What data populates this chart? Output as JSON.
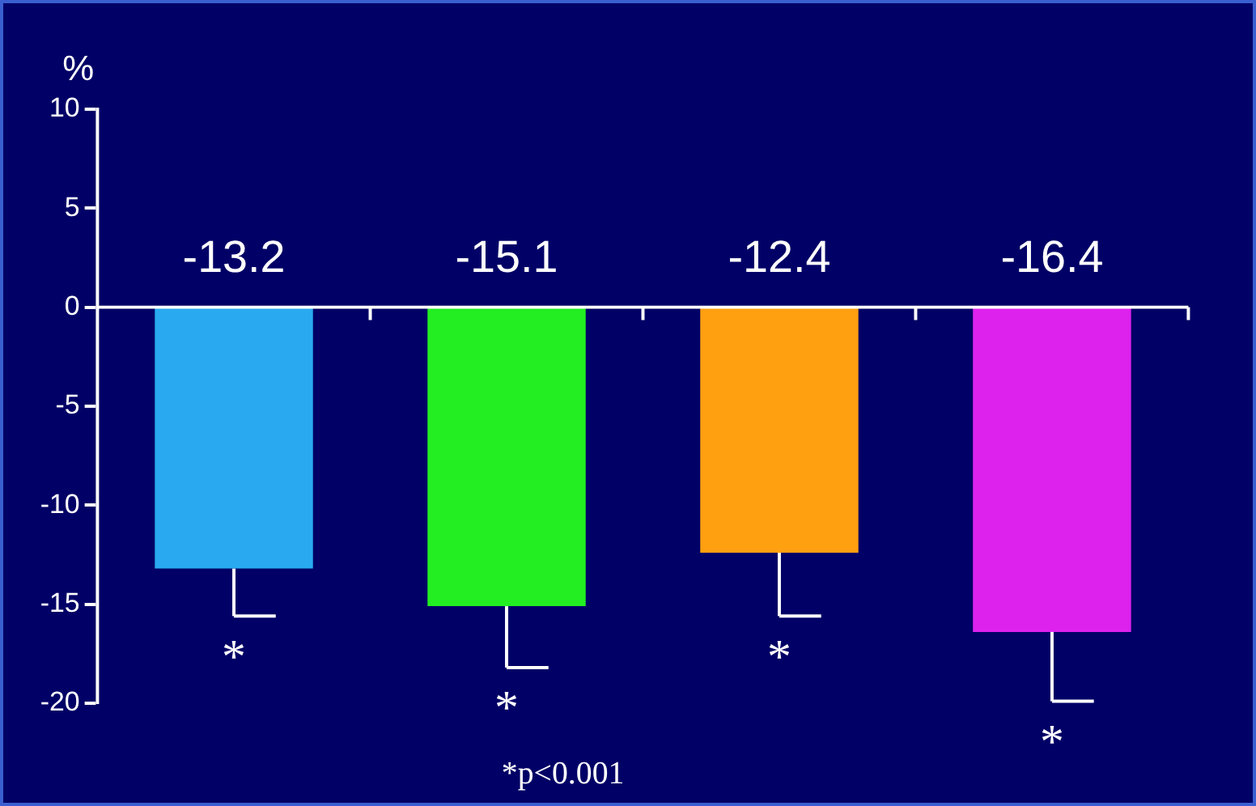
{
  "chart_data": {
    "type": "bar",
    "ylabel": "%",
    "categories": [
      null,
      null,
      null,
      null
    ],
    "values": [
      -13.2,
      -15.1,
      -12.4,
      -16.4
    ],
    "colors": [
      "#29aaf0",
      "#22ee22",
      "#ffa010",
      "#dd22ee"
    ],
    "errors": [
      [
        -15.6,
        -13.2
      ],
      [
        -18.2,
        -15.1
      ],
      [
        -15.6,
        -12.4
      ],
      [
        -19.9,
        -16.4
      ]
    ],
    "ylim": [
      -20,
      10
    ],
    "yticks": [
      -20,
      -15,
      -10,
      -5,
      0,
      5,
      10
    ],
    "data_labels": true,
    "legend": false,
    "annotations": [
      "*",
      "*",
      "*",
      "*",
      "*p<0.001"
    ]
  }
}
